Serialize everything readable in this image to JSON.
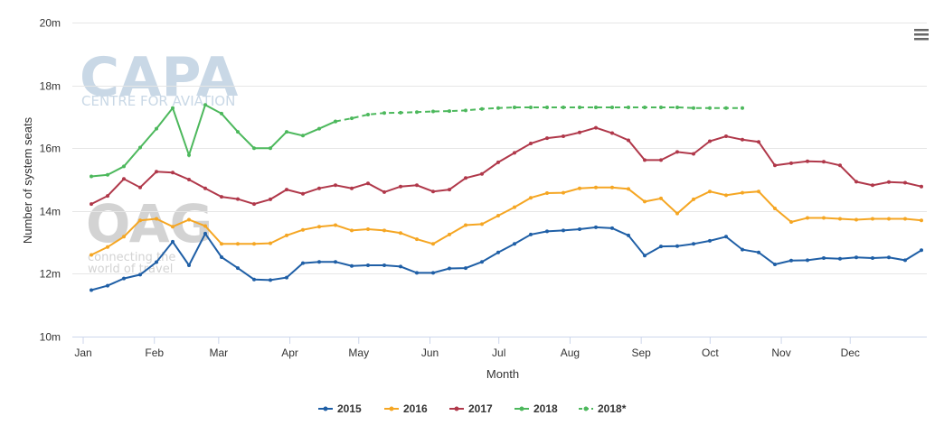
{
  "chart_data": {
    "type": "line",
    "xlabel": "Month",
    "ylabel": "Number of system seats",
    "ylim": [
      10,
      20
    ],
    "y_ticks": [
      "10m",
      "12m",
      "14m",
      "16m",
      "18m",
      "20m"
    ],
    "x_ticks": [
      "Jan",
      "Feb",
      "Mar",
      "Apr",
      "May",
      "Jun",
      "Jul",
      "Aug",
      "Sep",
      "Oct",
      "Nov",
      "Dec"
    ],
    "x_unit": "week",
    "grid": true,
    "legend_position": "bottom",
    "series": [
      {
        "name": "2015",
        "color": "#1f5fa6",
        "dashed": false,
        "values": [
          11.48,
          11.62,
          11.85,
          11.97,
          12.37,
          13.02,
          12.27,
          13.28,
          12.53,
          12.18,
          11.82,
          11.8,
          11.88,
          12.34,
          12.38,
          12.38,
          12.25,
          12.27,
          12.27,
          12.23,
          12.03,
          12.03,
          12.17,
          12.18,
          12.38,
          12.68,
          12.95,
          13.25,
          13.35,
          13.38,
          13.42,
          13.48,
          13.45,
          13.22,
          12.58,
          12.87,
          12.88,
          12.95,
          13.05,
          13.18,
          12.77,
          12.68,
          12.3,
          12.42,
          12.43,
          12.5,
          12.48,
          12.52,
          12.5,
          12.52,
          12.43,
          12.75
        ]
      },
      {
        "name": "2016",
        "color": "#f5a623",
        "dashed": false,
        "values": [
          12.6,
          12.85,
          13.18,
          13.7,
          13.75,
          13.5,
          13.72,
          13.52,
          12.95,
          12.95,
          12.95,
          12.97,
          13.22,
          13.4,
          13.5,
          13.55,
          13.38,
          13.42,
          13.38,
          13.3,
          13.1,
          12.95,
          13.25,
          13.55,
          13.58,
          13.85,
          14.12,
          14.42,
          14.57,
          14.58,
          14.72,
          14.75,
          14.75,
          14.7,
          14.3,
          14.4,
          13.92,
          14.37,
          14.62,
          14.5,
          14.58,
          14.62,
          14.08,
          13.65,
          13.78,
          13.78,
          13.75,
          13.72,
          13.75,
          13.75,
          13.75,
          13.7
        ]
      },
      {
        "name": "2017",
        "color": "#b0384a",
        "dashed": false,
        "values": [
          14.22,
          14.48,
          15.02,
          14.75,
          15.25,
          15.22,
          15.0,
          14.72,
          14.45,
          14.38,
          14.22,
          14.37,
          14.68,
          14.55,
          14.72,
          14.82,
          14.72,
          14.88,
          14.6,
          14.78,
          14.82,
          14.62,
          14.68,
          15.05,
          15.18,
          15.55,
          15.85,
          16.15,
          16.32,
          16.38,
          16.5,
          16.65,
          16.48,
          16.25,
          15.62,
          15.62,
          15.88,
          15.82,
          16.22,
          16.38,
          16.27,
          16.2,
          15.45,
          15.52,
          15.58,
          15.57,
          15.45,
          14.93,
          14.82,
          14.92,
          14.9,
          14.78
        ]
      },
      {
        "name": "2018",
        "color": "#4cb85c",
        "dashed": false,
        "values": [
          15.1,
          15.15,
          15.42,
          16.02,
          16.62,
          17.28,
          15.78,
          17.38,
          17.1,
          16.52,
          16.0,
          16.0,
          16.52,
          16.4,
          16.62,
          16.85
        ]
      },
      {
        "name": "2018*",
        "color": "#4cb85c",
        "dashed": true,
        "start_week": 15,
        "values": [
          16.85,
          16.95,
          17.07,
          17.12,
          17.13,
          17.15,
          17.17,
          17.18,
          17.2,
          17.25,
          17.28,
          17.3,
          17.3,
          17.3,
          17.3,
          17.3,
          17.3,
          17.3,
          17.3,
          17.3,
          17.3,
          17.3,
          17.28,
          17.28,
          17.28,
          17.28
        ]
      }
    ]
  },
  "watermarks": {
    "capa_big": "CAPA",
    "capa_small": "CENTRE FOR AVIATION",
    "oag_big": "OAG",
    "oag_line1": "connecting the",
    "oag_line2": "world of travel"
  },
  "menu_icon": "hamburger-menu-icon"
}
